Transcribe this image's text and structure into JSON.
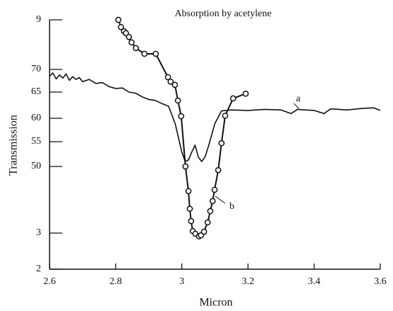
{
  "chart_data": {
    "type": "line",
    "title": "Absorption by acetylene",
    "xlabel": "Micron",
    "ylabel": "Transmission",
    "xlim": [
      2.6,
      3.6
    ],
    "xticks": [
      2.6,
      2.8,
      3.0,
      3.2,
      3.4,
      3.6
    ],
    "ylim": [
      20,
      90
    ],
    "yticks": [
      {
        "value": 90,
        "label": "9"
      },
      70,
      65,
      60,
      55,
      50,
      {
        "value": 30,
        "label": "3"
      },
      {
        "value": 20,
        "label": "2"
      }
    ],
    "annotations": [
      "a",
      "b"
    ],
    "series": [
      {
        "name": "a",
        "color": "#111111",
        "markers": false,
        "x": [
          2.6,
          2.61,
          2.62,
          2.63,
          2.64,
          2.65,
          2.66,
          2.67,
          2.68,
          2.69,
          2.7,
          2.72,
          2.74,
          2.76,
          2.78,
          2.8,
          2.82,
          2.84,
          2.86,
          2.88,
          2.9,
          2.92,
          2.94,
          2.96,
          2.98,
          3.0,
          3.01,
          3.02,
          3.03,
          3.04,
          3.05,
          3.06,
          3.07,
          3.08,
          3.1,
          3.12,
          3.15,
          3.2,
          3.25,
          3.3,
          3.33,
          3.35,
          3.4,
          3.43,
          3.45,
          3.5,
          3.55,
          3.58,
          3.6
        ],
        "values": [
          68.5,
          69.2,
          67.9,
          68.8,
          68.1,
          69.0,
          67.6,
          68.4,
          67.8,
          68.2,
          67.3,
          67.8,
          66.9,
          67.1,
          66.2,
          65.8,
          65.9,
          65.0,
          64.8,
          64.1,
          63.6,
          63.4,
          62.8,
          62.3,
          58.8,
          52.9,
          51.0,
          51.3,
          52.9,
          54.3,
          51.9,
          51.0,
          51.9,
          54.0,
          58.9,
          61.4,
          61.6,
          61.5,
          61.7,
          61.6,
          60.9,
          61.7,
          61.5,
          60.9,
          61.8,
          61.6,
          61.9,
          62.0,
          61.5
        ]
      },
      {
        "name": "b",
        "color": "#111111",
        "markers": true,
        "x": [
          2.808,
          2.816,
          2.825,
          2.831,
          2.84,
          2.848,
          2.861,
          2.887,
          2.921,
          2.958,
          2.966,
          2.979,
          2.988,
          2.998,
          3.011,
          3.02,
          3.024,
          3.028,
          3.033,
          3.041,
          3.052,
          3.058,
          3.067,
          3.078,
          3.086,
          3.093,
          3.099,
          3.11,
          3.12,
          3.131,
          3.155,
          3.193
        ],
        "values": [
          90,
          87.1,
          85.4,
          84.6,
          83.1,
          80.9,
          78.6,
          76.3,
          76.3,
          68.3,
          67.3,
          66.6,
          63.4,
          60.4,
          50,
          42.6,
          37.3,
          33.6,
          30.6,
          29.8,
          29.1,
          29.4,
          30.4,
          33.2,
          36.6,
          39.6,
          43.0,
          48.9,
          54.7,
          60.5,
          63.8,
          64.7
        ]
      }
    ]
  }
}
